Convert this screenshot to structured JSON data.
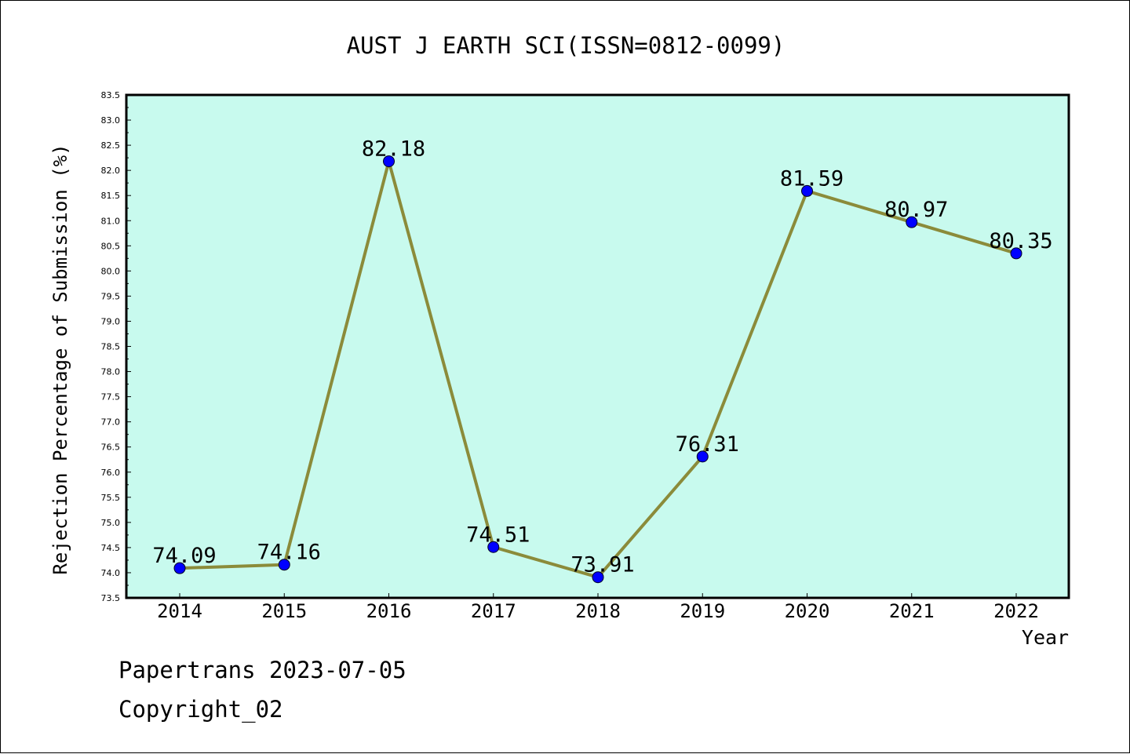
{
  "chart_data": {
    "type": "line",
    "title": "AUST J EARTH SCI(ISSN=0812-0099)",
    "xlabel": "Year",
    "ylabel": "Rejection Percentage of Submission (%)",
    "x": [
      "2014",
      "2015",
      "2016",
      "2017",
      "2018",
      "2019",
      "2020",
      "2021",
      "2022"
    ],
    "series": [
      {
        "values": [
          74.09,
          74.16,
          82.18,
          74.51,
          73.91,
          76.31,
          81.59,
          80.97,
          80.35
        ],
        "labels": [
          "74.09",
          "74.16",
          "82.18",
          "74.51",
          "73.91",
          "76.31",
          "81.59",
          "80.97",
          "80.35"
        ],
        "line_color": "#8B8B3A",
        "marker_color": "#0000FF"
      }
    ],
    "ylim": [
      73.5,
      83.5
    ],
    "yticks": [
      "73.5",
      "74.0",
      "74.5",
      "75.0",
      "75.5",
      "76.0",
      "76.5",
      "77.0",
      "77.5",
      "78.0",
      "78.5",
      "79.0",
      "79.5",
      "80.0",
      "80.5",
      "81.0",
      "81.5",
      "82.0",
      "82.5",
      "83.0",
      "83.5"
    ],
    "plot_background": "#C8FAEE",
    "grid": false,
    "legend": "none"
  },
  "footer": {
    "line1": "Papertrans 2023-07-05",
    "line2": "Copyright_02"
  }
}
